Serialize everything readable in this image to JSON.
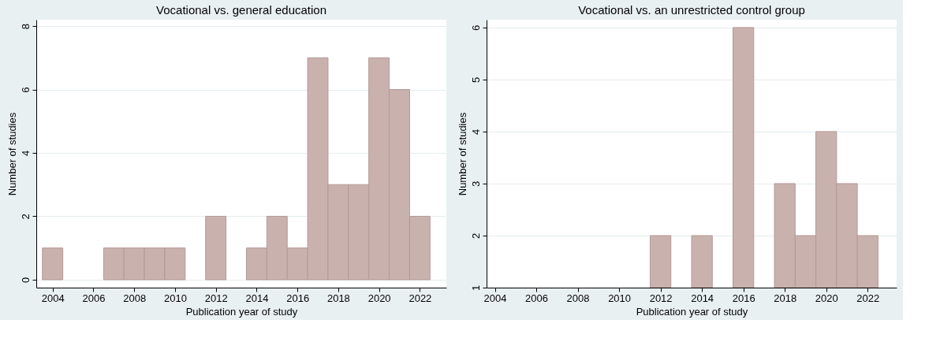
{
  "chart_data": [
    {
      "type": "bar",
      "title": "Vocational vs. general education",
      "xlabel": "Publication year of study",
      "ylabel": "Number of studies",
      "x": [
        2004,
        2007,
        2008,
        2009,
        2010,
        2012,
        2014,
        2015,
        2016,
        2017,
        2018,
        2019,
        2020,
        2021,
        2022
      ],
      "series": [
        {
          "color": "#c9b2ae",
          "values": [
            1,
            1,
            1,
            1,
            1,
            2,
            1,
            2,
            1,
            7,
            3,
            3,
            7,
            6,
            2
          ]
        }
      ],
      "xlim": [
        2003.2,
        2023.3
      ],
      "xticks": [
        2004,
        2006,
        2008,
        2010,
        2012,
        2014,
        2016,
        2018,
        2020,
        2022
      ],
      "ylim": [
        -0.25,
        8.2
      ],
      "yticks": [
        0,
        2,
        4,
        6,
        8
      ],
      "grid": "y"
    },
    {
      "type": "bar",
      "title": "Vocational vs. an unrestricted control group",
      "xlabel": "Publication year of study",
      "ylabel": "Number of studies",
      "x": [
        2012,
        2014,
        2016,
        2018,
        2019,
        2020,
        2021,
        2022
      ],
      "series": [
        {
          "color": "#c9b2ae",
          "values": [
            2,
            2,
            6,
            3,
            2,
            4,
            3,
            2
          ]
        }
      ],
      "xlim": [
        2003.6,
        2023.4
      ],
      "xticks": [
        2004,
        2006,
        2008,
        2010,
        2012,
        2014,
        2016,
        2018,
        2020,
        2022
      ],
      "ylim": [
        1,
        6.15
      ],
      "yticks": [
        1,
        2,
        3,
        4,
        5,
        6
      ],
      "grid": "y"
    }
  ]
}
